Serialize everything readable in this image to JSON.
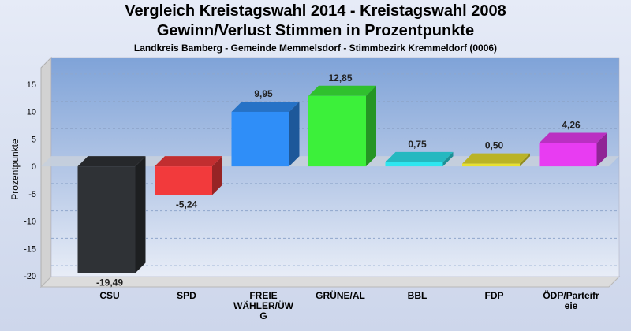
{
  "header": {
    "title_line1": "Vergleich Kreistagswahl 2014 - Kreistagswahl 2008",
    "title_line2": "Gewinn/Verlust Stimmen in Prozentpunkte",
    "subtitle": "Landkreis Bamberg - Gemeinde Memmelsdorf - Stimmbezirk Kremmeldorf (0006)"
  },
  "chart_data": {
    "type": "bar",
    "title": "Vergleich Kreistagswahl 2014 - Kreistagswahl 2008",
    "subtitle": "Gewinn/Verlust Stimmen in Prozentpunkte",
    "ylabel": "Prozentpunkte",
    "xlabel": "",
    "ylim": [
      -22,
      18
    ],
    "yticks": [
      -20,
      -15,
      -10,
      -5,
      0,
      5,
      10,
      15
    ],
    "grid": true,
    "categories": [
      "CSU",
      "SPD",
      "FREIE WÄHLER/ÜWG",
      "GRÜNE/AL",
      "BBL",
      "FDP",
      "ÖDP/Parteifreie"
    ],
    "category_lines": [
      [
        "CSU"
      ],
      [
        "SPD"
      ],
      [
        "FREIE",
        "WÄHLER/ÜW",
        "G"
      ],
      [
        "GRÜNE/AL"
      ],
      [
        "BBL"
      ],
      [
        "FDP"
      ],
      [
        "ÖDP/Parteifr",
        "eie"
      ]
    ],
    "values": [
      -19.49,
      -5.24,
      9.95,
      12.85,
      0.75,
      0.5,
      4.26
    ],
    "value_labels": [
      "-19,49",
      "-5,24",
      "9,95",
      "12,85",
      "0,75",
      "0,50",
      "4,26"
    ],
    "colors": [
      "#2f3236",
      "#f23a3c",
      "#2f8ef8",
      "#3cf03a",
      "#2ee6f0",
      "#e8e030",
      "#e83cf2"
    ]
  }
}
